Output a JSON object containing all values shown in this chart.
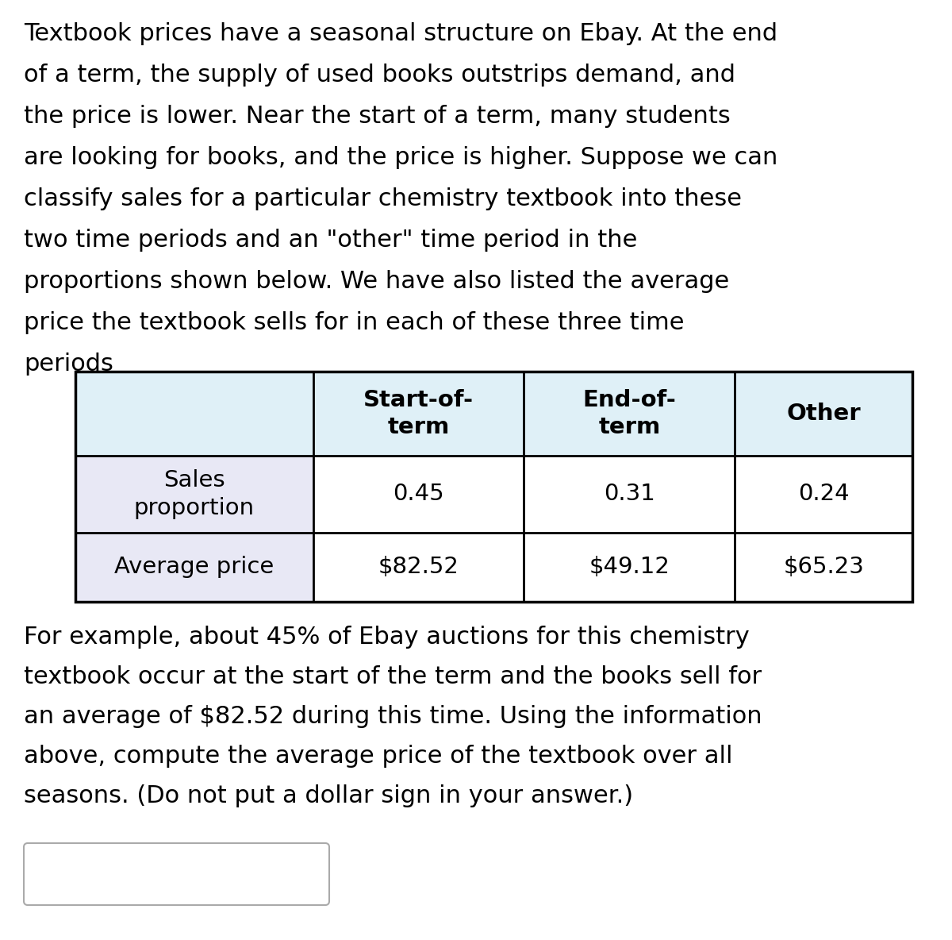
{
  "intro_text": "Textbook prices have a seasonal structure on Ebay. At the end\nof a term, the supply of used books outstrips demand, and\nthe price is lower. Near the start of a term, many students\nare looking for books, and the price is higher. Suppose we can\nclassify sales for a particular chemistry textbook into these\ntwo time periods and an \"other\" time period in the\nproportions shown below. We have also listed the average\nprice the textbook sells for in each of these three time\nperiods",
  "footer_text": "For example, about 45% of Ebay auctions for this chemistry\ntextbook occur at the start of the term and the books sell for\nan average of $82.52 during this time. Using the information\nabove, compute the average price of the textbook over all\nseasons. (Do not put a dollar sign in your answer.)",
  "col_headers": [
    "Start-of-\nterm",
    "End-of-\nterm",
    "Other"
  ],
  "row_headers": [
    "Sales\nproportion",
    "Average price"
  ],
  "table_data": [
    [
      "0.45",
      "0.31",
      "0.24"
    ],
    [
      "$82.52",
      "$49.12",
      "$65.23"
    ]
  ],
  "header_bg": "#dff0f7",
  "data_row1_bg": "#e8e8f5",
  "data_row2_bg": "#e8e8f5",
  "bg_color": "#ffffff",
  "text_color": "#000000",
  "border_color": "#000000",
  "intro_fontsize": 22,
  "table_header_fontsize": 21,
  "table_data_fontsize": 21,
  "footer_fontsize": 22,
  "fig_width": 12.0,
  "fig_height": 11.84,
  "dpi": 100
}
